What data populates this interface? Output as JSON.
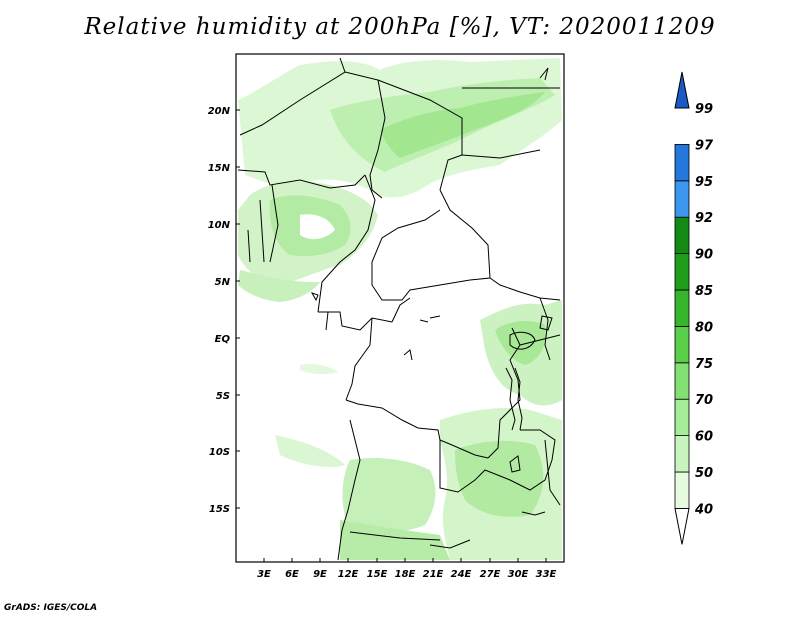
{
  "title": "Relative humidity at 200hPa [%], VT: 2020011209",
  "credit": "GrADS: IGES/COLA",
  "lat_labels": [
    "20N",
    "15N",
    "10N",
    "5N",
    "EQ",
    "5S",
    "10S",
    "15S"
  ],
  "lon_labels": [
    "3E",
    "6E",
    "9E",
    "12E",
    "15E",
    "18E",
    "21E",
    "24E",
    "27E",
    "30E",
    "33E"
  ],
  "colorbar": {
    "levels": [
      "40",
      "50",
      "60",
      "70",
      "75",
      "80",
      "85",
      "90",
      "92",
      "95",
      "97",
      "99"
    ],
    "colors": [
      "#ffffff",
      "#e6fae0",
      "#c8f5be",
      "#a5ed98",
      "#82e172",
      "#5ad04a",
      "#37b62d",
      "#1f9c19",
      "#138a14",
      "#3c96f0",
      "#2478dc",
      "#1a5ac4"
    ]
  }
}
